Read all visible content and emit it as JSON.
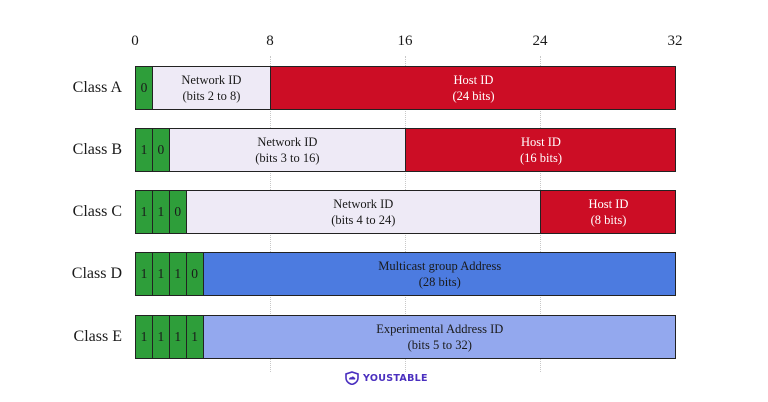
{
  "axis": {
    "ticks": [
      {
        "value": 0,
        "label": "0"
      },
      {
        "value": 8,
        "label": "8"
      },
      {
        "value": 16,
        "label": "16"
      },
      {
        "value": 24,
        "label": "24"
      },
      {
        "value": 32,
        "label": "32"
      }
    ],
    "range": [
      0,
      32
    ]
  },
  "rows": [
    {
      "label": "Class A",
      "segments": [
        {
          "kind": "bit",
          "text": "0",
          "from": 0,
          "to": 1
        },
        {
          "kind": "light",
          "line1": "Network ID",
          "line2": "(bits 2 to 8)",
          "from": 1,
          "to": 8
        },
        {
          "kind": "red",
          "line1": "Host ID",
          "line2": "(24 bits)",
          "from": 8,
          "to": 32
        }
      ]
    },
    {
      "label": "Class B",
      "segments": [
        {
          "kind": "bit",
          "text": "1",
          "from": 0,
          "to": 1
        },
        {
          "kind": "bit",
          "text": "0",
          "from": 1,
          "to": 2
        },
        {
          "kind": "light",
          "line1": "Network ID",
          "line2": "(bits 3 to 16)",
          "from": 2,
          "to": 16
        },
        {
          "kind": "red",
          "line1": "Host ID",
          "line2": "(16 bits)",
          "from": 16,
          "to": 32
        }
      ]
    },
    {
      "label": "Class C",
      "segments": [
        {
          "kind": "bit",
          "text": "1",
          "from": 0,
          "to": 1
        },
        {
          "kind": "bit",
          "text": "1",
          "from": 1,
          "to": 2
        },
        {
          "kind": "bit",
          "text": "0",
          "from": 2,
          "to": 3
        },
        {
          "kind": "light",
          "line1": "Network ID",
          "line2": "(bits 4 to 24)",
          "from": 3,
          "to": 24
        },
        {
          "kind": "red",
          "line1": "Host ID",
          "line2": "(8 bits)",
          "from": 24,
          "to": 32
        }
      ]
    },
    {
      "label": "Class D",
      "segments": [
        {
          "kind": "bit",
          "text": "1",
          "from": 0,
          "to": 1
        },
        {
          "kind": "bit",
          "text": "1",
          "from": 1,
          "to": 2
        },
        {
          "kind": "bit",
          "text": "1",
          "from": 2,
          "to": 3
        },
        {
          "kind": "bit",
          "text": "0",
          "from": 3,
          "to": 4
        },
        {
          "kind": "blue",
          "line1": "Multicast group Address",
          "line2": "(28 bits)",
          "from": 4,
          "to": 32
        }
      ]
    },
    {
      "label": "Class E",
      "segments": [
        {
          "kind": "bit",
          "text": "1",
          "from": 0,
          "to": 1
        },
        {
          "kind": "bit",
          "text": "1",
          "from": 1,
          "to": 2
        },
        {
          "kind": "bit",
          "text": "1",
          "from": 2,
          "to": 3
        },
        {
          "kind": "bit",
          "text": "1",
          "from": 3,
          "to": 4
        },
        {
          "kind": "paleblue",
          "line1": "Experimental Address ID",
          "line2": "(bits 5 to 32)",
          "from": 4,
          "to": 32
        }
      ]
    }
  ],
  "logo": {
    "text": "YOUSTABLE",
    "icon": "shield-cloud-icon"
  },
  "colors": {
    "bit": "#2e9e3a",
    "network": "#eeeaf6",
    "host": "#cc0d25",
    "multicast": "#4c7be0",
    "experimental": "#93a8ee",
    "logo": "#4a2fbf"
  }
}
